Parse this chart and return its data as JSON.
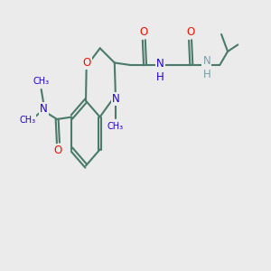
{
  "bg_color": "#ebebeb",
  "bond_color": "#4a7a6a",
  "O_color": "#ee1100",
  "N_color": "#2200cc",
  "H_color": "#7a9eaa",
  "line_width": 1.5,
  "font_size_atom": 8.5,
  "font_size_small": 7.0,
  "xlim": [
    0,
    12
  ],
  "ylim": [
    3,
    9
  ]
}
